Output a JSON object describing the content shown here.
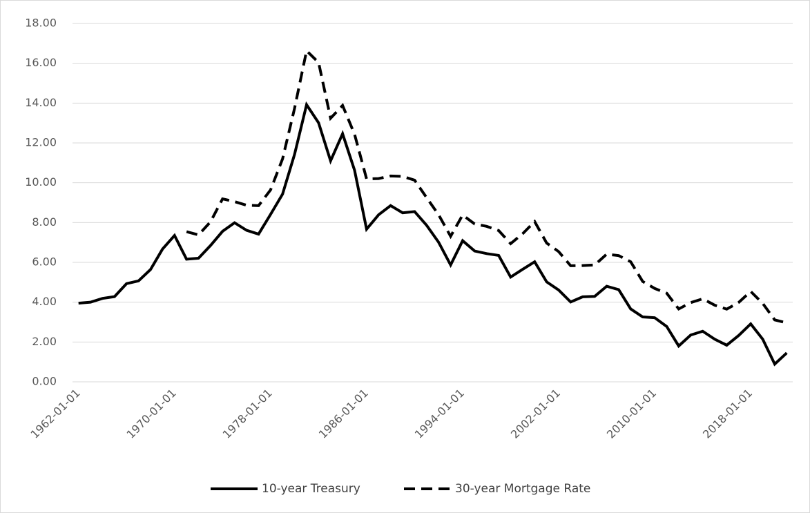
{
  "chart_data": {
    "type": "line",
    "categories": [
      "1962-01-01",
      null,
      null,
      null,
      null,
      null,
      null,
      null,
      "1970-01-01",
      null,
      null,
      null,
      null,
      null,
      null,
      null,
      "1978-01-01",
      null,
      null,
      null,
      null,
      null,
      null,
      null,
      "1986-01-01",
      null,
      null,
      null,
      null,
      null,
      null,
      null,
      "1994-01-01",
      null,
      null,
      null,
      null,
      null,
      null,
      null,
      "2002-01-01",
      null,
      null,
      null,
      null,
      null,
      null,
      null,
      "2010-01-01",
      null,
      null,
      null,
      null,
      null,
      null,
      null,
      "2018-01-01",
      null,
      null,
      null
    ],
    "series": [
      {
        "name": "10-year Treasury",
        "color": "#000000",
        "dash": false,
        "values": [
          3.95,
          4.0,
          4.19,
          4.28,
          4.93,
          5.07,
          5.64,
          6.67,
          7.35,
          6.16,
          6.21,
          6.85,
          7.56,
          7.99,
          7.61,
          7.42,
          8.41,
          9.43,
          11.43,
          13.92,
          13.01,
          11.1,
          12.46,
          10.62,
          7.67,
          8.39,
          8.85,
          8.49,
          8.55,
          7.86,
          7.01,
          5.87,
          7.09,
          6.57,
          6.44,
          6.35,
          5.26,
          5.65,
          6.03,
          5.02,
          4.61,
          4.01,
          4.27,
          4.29,
          4.8,
          4.63,
          3.66,
          3.26,
          3.22,
          2.78,
          1.8,
          2.35,
          2.54,
          2.14,
          1.84,
          2.33,
          2.91,
          2.14,
          0.89,
          1.45
        ]
      },
      {
        "name": "30-year Mortgage Rate",
        "color": "#000000",
        "dash": true,
        "values": [
          null,
          null,
          null,
          null,
          null,
          null,
          null,
          null,
          null,
          7.54,
          7.38,
          8.04,
          9.19,
          9.05,
          8.87,
          8.85,
          9.64,
          11.2,
          13.74,
          16.63,
          16.04,
          13.24,
          13.88,
          12.43,
          10.19,
          10.21,
          10.34,
          10.32,
          10.13,
          9.25,
          8.39,
          7.31,
          8.38,
          7.93,
          7.81,
          7.6,
          6.94,
          7.44,
          8.05,
          6.97,
          6.54,
          5.83,
          5.84,
          5.87,
          6.41,
          6.34,
          6.03,
          5.04,
          4.69,
          4.45,
          3.66,
          3.98,
          4.17,
          3.85,
          3.65,
          3.99,
          4.54,
          3.94,
          3.11,
          2.96
        ]
      }
    ],
    "ylim": [
      0,
      18
    ],
    "yticks": [
      {
        "value": 0,
        "label": "0.00"
      },
      {
        "value": 2,
        "label": "2.00"
      },
      {
        "value": 4,
        "label": "4.00"
      },
      {
        "value": 6,
        "label": "6.00"
      },
      {
        "value": 8,
        "label": "8.00"
      },
      {
        "value": 10,
        "label": "10.00"
      },
      {
        "value": 12,
        "label": "12.00"
      },
      {
        "value": 14,
        "label": "14.00"
      },
      {
        "value": 16,
        "label": "16.00"
      },
      {
        "value": 18,
        "label": "18.00"
      }
    ],
    "grid": true,
    "legend": "bottom"
  }
}
